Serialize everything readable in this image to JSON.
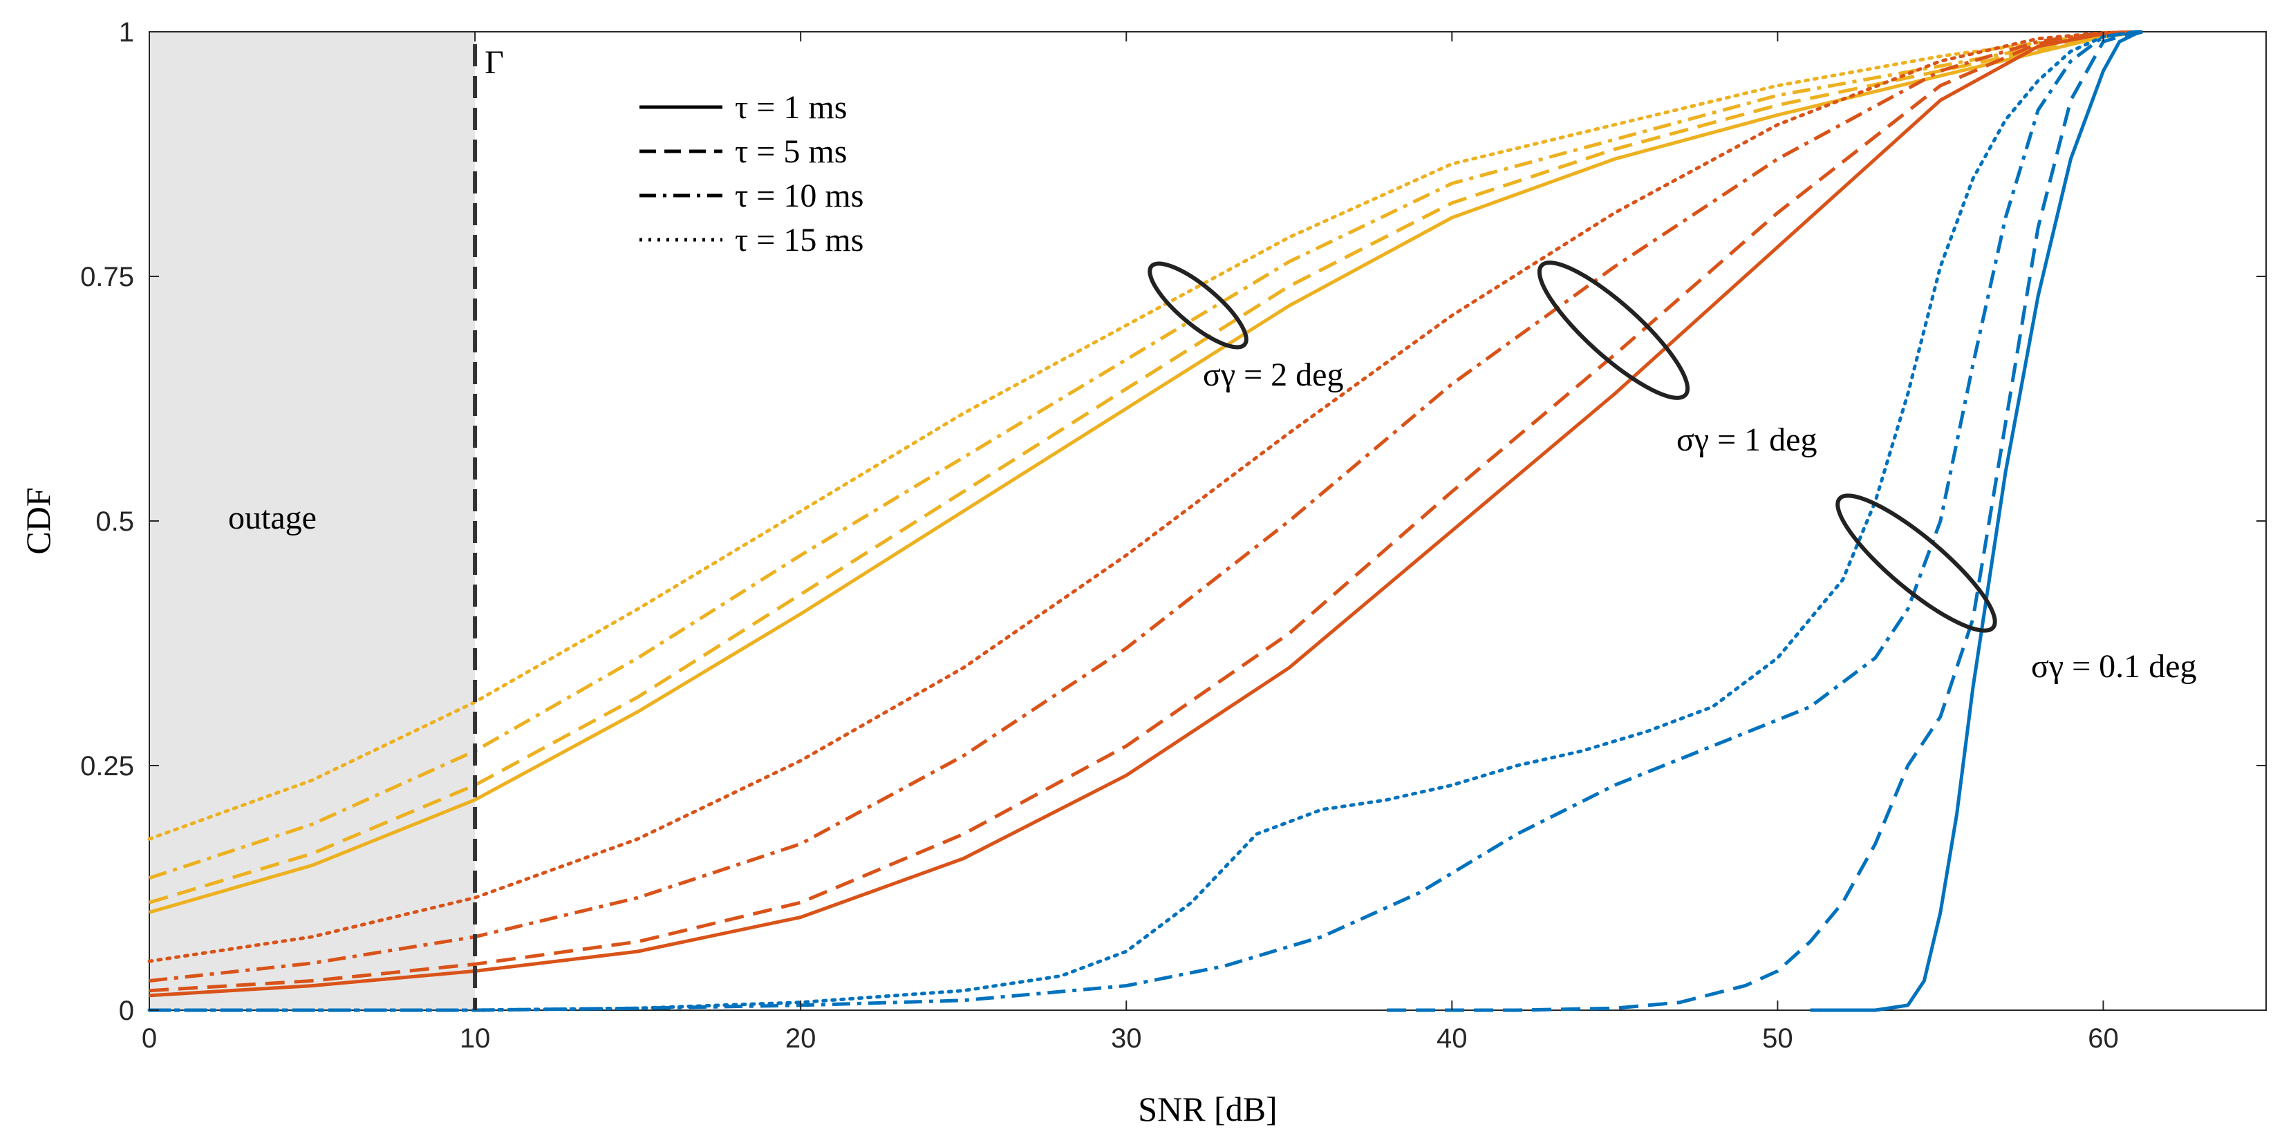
{
  "chart_data": {
    "type": "line",
    "xlabel": "SNR [dB]",
    "ylabel": "CDF",
    "xlim": [
      0,
      65
    ],
    "ylim": [
      0,
      1
    ],
    "x_ticks": [
      "0",
      "10",
      "20",
      "30",
      "40",
      "50",
      "60"
    ],
    "y_ticks": [
      "0",
      "0.25",
      "0.5",
      "0.75",
      "1"
    ],
    "grid": false,
    "legend_position": "top-left",
    "legend": [
      {
        "label": "τ = 1 ms",
        "style": "solid"
      },
      {
        "label": "τ = 5 ms",
        "style": "dashed"
      },
      {
        "label": "τ = 10 ms",
        "style": "dashdot"
      },
      {
        "label": "τ = 15 ms",
        "style": "dotted"
      }
    ],
    "outage": {
      "label": "outage",
      "x_from": 0,
      "x_to": 10
    },
    "threshold": {
      "label": "Γ",
      "x": 10
    },
    "annotations": [
      {
        "text": "σγ = 2 deg"
      },
      {
        "text": "σγ = 1 deg"
      },
      {
        "text": "σγ = 0.1 deg"
      }
    ],
    "colors": {
      "blue": "#0072BD",
      "orange": "#D95319",
      "yellow": "#EDB120"
    },
    "series": [
      {
        "name": "σγ = 2 deg, τ = 1 ms",
        "color": "yellow",
        "style": "solid",
        "x": [
          0,
          5,
          10,
          15,
          20,
          25,
          30,
          35,
          40,
          45,
          50,
          55,
          60,
          61.2
        ],
        "y": [
          0.1,
          0.148,
          0.215,
          0.305,
          0.405,
          0.51,
          0.615,
          0.72,
          0.81,
          0.87,
          0.915,
          0.955,
          0.995,
          1.0
        ]
      },
      {
        "name": "σγ = 2 deg, τ = 5 ms",
        "color": "yellow",
        "style": "dashed",
        "x": [
          0,
          5,
          10,
          15,
          20,
          25,
          30,
          35,
          40,
          45,
          50,
          55,
          60,
          61.2
        ],
        "y": [
          0.11,
          0.16,
          0.23,
          0.32,
          0.425,
          0.53,
          0.635,
          0.74,
          0.825,
          0.88,
          0.925,
          0.96,
          0.996,
          1.0
        ]
      },
      {
        "name": "σγ = 2 deg, τ = 10 ms",
        "color": "yellow",
        "style": "dashdot",
        "x": [
          0,
          5,
          10,
          15,
          20,
          25,
          30,
          35,
          40,
          45,
          50,
          55,
          60,
          61.2
        ],
        "y": [
          0.135,
          0.19,
          0.265,
          0.36,
          0.465,
          0.565,
          0.665,
          0.765,
          0.845,
          0.89,
          0.935,
          0.965,
          0.997,
          1.0
        ]
      },
      {
        "name": "σγ = 2 deg, τ = 15 ms",
        "color": "yellow",
        "style": "dotted",
        "x": [
          0,
          5,
          10,
          15,
          20,
          25,
          30,
          35,
          40,
          45,
          50,
          55,
          60,
          61.2
        ],
        "y": [
          0.175,
          0.235,
          0.315,
          0.41,
          0.51,
          0.61,
          0.7,
          0.79,
          0.865,
          0.905,
          0.945,
          0.975,
          0.998,
          1.0
        ]
      },
      {
        "name": "σγ = 1 deg, τ = 1 ms",
        "color": "orange",
        "style": "solid",
        "x": [
          0,
          5,
          10,
          15,
          20,
          25,
          30,
          35,
          40,
          45,
          50,
          55,
          58,
          60,
          61.2
        ],
        "y": [
          0.015,
          0.025,
          0.04,
          0.06,
          0.095,
          0.155,
          0.24,
          0.35,
          0.49,
          0.63,
          0.78,
          0.93,
          0.985,
          0.998,
          1.0
        ]
      },
      {
        "name": "σγ = 1 deg, τ = 5 ms",
        "color": "orange",
        "style": "dashed",
        "x": [
          0,
          5,
          10,
          15,
          20,
          25,
          30,
          35,
          40,
          45,
          50,
          55,
          58,
          60,
          61.2
        ],
        "y": [
          0.02,
          0.03,
          0.047,
          0.07,
          0.11,
          0.18,
          0.27,
          0.385,
          0.53,
          0.67,
          0.815,
          0.945,
          0.988,
          0.998,
          1.0
        ]
      },
      {
        "name": "σγ = 1 deg, τ = 10 ms",
        "color": "orange",
        "style": "dashdot",
        "x": [
          0,
          5,
          10,
          15,
          20,
          25,
          30,
          35,
          40,
          45,
          50,
          55,
          58,
          60,
          61.2
        ],
        "y": [
          0.03,
          0.048,
          0.075,
          0.115,
          0.17,
          0.26,
          0.37,
          0.5,
          0.64,
          0.76,
          0.87,
          0.96,
          0.99,
          0.999,
          1.0
        ]
      },
      {
        "name": "σγ = 1 deg, τ = 15 ms",
        "color": "orange",
        "style": "dotted",
        "x": [
          0,
          5,
          10,
          15,
          20,
          25,
          30,
          35,
          40,
          45,
          50,
          55,
          58,
          60,
          61.2
        ],
        "y": [
          0.05,
          0.075,
          0.115,
          0.175,
          0.255,
          0.35,
          0.465,
          0.59,
          0.71,
          0.815,
          0.905,
          0.97,
          0.993,
          0.999,
          1.0
        ]
      },
      {
        "name": "σγ = 0.1 deg, τ = 1 ms",
        "color": "blue",
        "style": "solid",
        "x": [
          51,
          53,
          54,
          54.5,
          55,
          55.5,
          56,
          57,
          58,
          59,
          60,
          60.5,
          61,
          61.2
        ],
        "y": [
          0,
          0,
          0.005,
          0.03,
          0.1,
          0.2,
          0.33,
          0.55,
          0.73,
          0.87,
          0.96,
          0.99,
          0.998,
          1.0
        ]
      },
      {
        "name": "σγ = 0.1 deg, τ = 5 ms",
        "color": "blue",
        "style": "dashed",
        "x": [
          38,
          42,
          45,
          47,
          49,
          50,
          51,
          52,
          53,
          54,
          55,
          56,
          57,
          58,
          59,
          60,
          61,
          61.2
        ],
        "y": [
          0,
          0,
          0.002,
          0.008,
          0.025,
          0.04,
          0.07,
          0.11,
          0.17,
          0.25,
          0.3,
          0.4,
          0.6,
          0.8,
          0.93,
          0.99,
          1.0,
          1.0
        ]
      },
      {
        "name": "σγ = 0.1 deg, τ = 10 ms",
        "color": "blue",
        "style": "dashdot",
        "x": [
          0,
          10,
          15,
          20,
          25,
          30,
          33,
          36,
          39,
          42,
          45,
          48,
          51,
          53,
          54,
          55,
          56,
          57,
          58,
          59,
          60,
          61,
          61.2
        ],
        "y": [
          0,
          0,
          0.002,
          0.005,
          0.01,
          0.025,
          0.045,
          0.075,
          0.12,
          0.18,
          0.23,
          0.27,
          0.31,
          0.36,
          0.41,
          0.5,
          0.66,
          0.81,
          0.92,
          0.97,
          0.995,
          1.0,
          1.0
        ]
      },
      {
        "name": "σγ = 0.1 deg, τ = 15 ms",
        "color": "blue",
        "style": "dotted",
        "x": [
          0,
          10,
          15,
          20,
          25,
          28,
          30,
          32,
          34,
          36,
          38,
          40,
          42,
          44,
          46,
          48,
          50,
          52,
          53,
          54,
          55,
          56,
          57,
          58,
          59,
          60,
          61,
          61.2
        ],
        "y": [
          0,
          0,
          0.002,
          0.008,
          0.02,
          0.035,
          0.06,
          0.11,
          0.18,
          0.205,
          0.215,
          0.23,
          0.25,
          0.265,
          0.285,
          0.31,
          0.36,
          0.44,
          0.52,
          0.63,
          0.76,
          0.85,
          0.91,
          0.95,
          0.98,
          0.995,
          1.0,
          1.0
        ]
      }
    ]
  }
}
